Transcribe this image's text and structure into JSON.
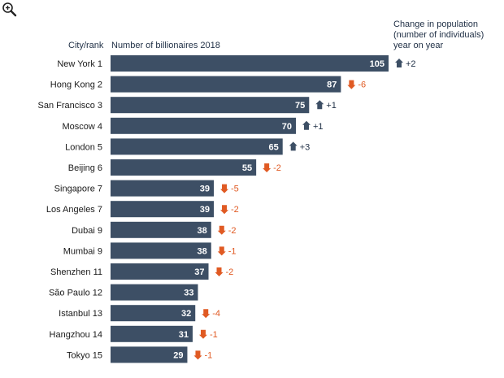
{
  "header": {
    "city_rank": "City/rank",
    "metric": "Number of billionaires 2018",
    "change": "Change in population\n(number of individuals)\nyear on year"
  },
  "icons": {
    "zoom": "zoom-in-icon",
    "up": "up-arrow-icon",
    "down": "down-arrow-icon"
  },
  "colors": {
    "bar": "#3d4f65",
    "up": "#3d4f65",
    "down": "#e05a23"
  },
  "chart_data": {
    "type": "bar",
    "orientation": "horizontal",
    "categories": [
      "New York 1",
      "Hong Kong 2",
      "San Francisco 3",
      "Moscow 4",
      "London 5",
      "Beijing 6",
      "Singapore 7",
      "Los Angeles 7",
      "Dubai 9",
      "Mumbai 9",
      "Shenzhen 11",
      "São Paulo 12",
      "Istanbul 13",
      "Hangzhou 14",
      "Tokyo 15"
    ],
    "values": [
      105,
      87,
      75,
      70,
      65,
      55,
      39,
      39,
      38,
      38,
      37,
      33,
      32,
      31,
      29
    ],
    "change_labels": [
      "+2",
      "-6",
      "+1",
      "+1",
      "+3",
      "-2",
      "-5",
      "-2",
      "-2",
      "-1",
      "-2",
      "",
      "-4",
      "-1",
      "-1"
    ],
    "change_values": [
      2,
      -6,
      1,
      1,
      3,
      -2,
      -5,
      -2,
      -2,
      -1,
      -2,
      null,
      -4,
      -1,
      -1
    ],
    "xlim": [
      0,
      105
    ],
    "grid": false,
    "legend": "none"
  }
}
